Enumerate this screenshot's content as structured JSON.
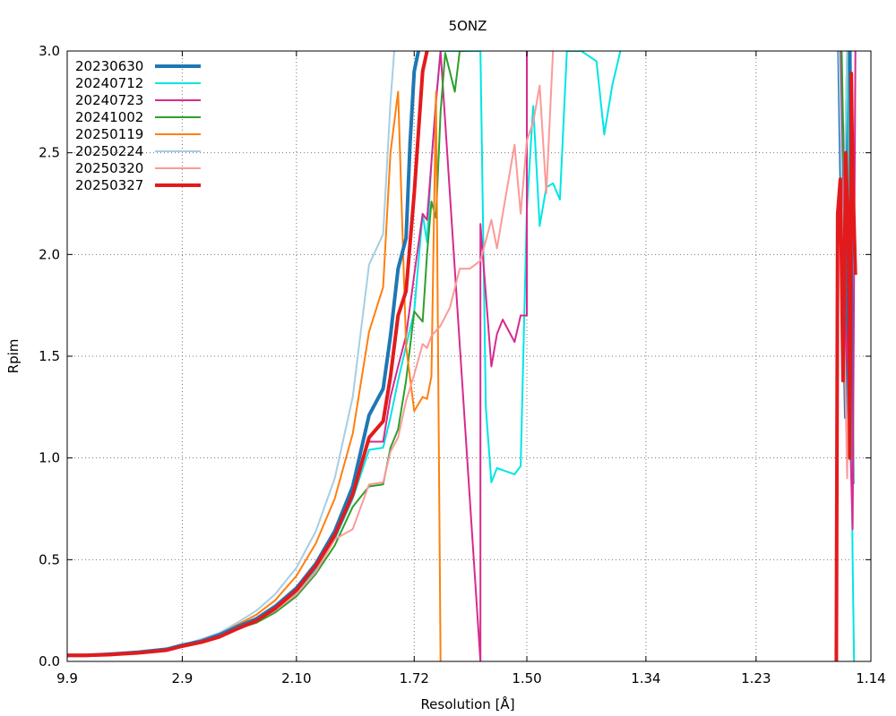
{
  "chart_data": {
    "type": "line",
    "title": "5ONZ",
    "xlabel": "Resolution [Å]",
    "ylabel": "Rpim",
    "x_scale": "reciprocal-square (1/d²)",
    "xlim": [
      9.9,
      1.14
    ],
    "ylim": [
      0,
      3.0
    ],
    "x_ticks": [
      "9.9",
      "2.9",
      "2.10",
      "1.72",
      "1.50",
      "1.34",
      "1.23",
      "1.14"
    ],
    "y_ticks": [
      "0.0",
      "0.5",
      "1.0",
      "1.5",
      "2.0",
      "2.5",
      "3.0"
    ],
    "grid": true,
    "legend_position": "top-left",
    "series": [
      {
        "name": "20230630",
        "color": "#1f77b4",
        "width": 4,
        "x": [
          9.9,
          6.0,
          4.5,
          3.6,
          3.1,
          2.9,
          2.7,
          2.55,
          2.42,
          2.3,
          2.2,
          2.1,
          2.02,
          1.95,
          1.89,
          1.84,
          1.8,
          1.78,
          1.76,
          1.74,
          1.73,
          1.72,
          1.71
        ],
        "y": [
          0.03,
          0.03,
          0.035,
          0.045,
          0.06,
          0.08,
          0.1,
          0.13,
          0.17,
          0.21,
          0.27,
          0.36,
          0.48,
          0.64,
          0.86,
          1.21,
          1.34,
          1.6,
          1.93,
          2.08,
          2.55,
          2.9,
          3.0
        ]
      },
      {
        "name": "20240712",
        "color": "#00e5e5",
        "width": 2,
        "x": [
          9.9,
          6.0,
          4.5,
          3.6,
          3.1,
          2.9,
          2.7,
          2.55,
          2.42,
          2.3,
          2.2,
          2.1,
          2.02,
          1.95,
          1.89,
          1.84,
          1.8,
          1.78,
          1.76,
          1.74,
          1.72,
          1.7,
          1.69,
          1.68,
          1.67,
          1.66,
          1.58,
          1.57,
          1.56,
          1.55,
          1.54,
          1.52,
          1.51,
          1.5,
          1.49,
          1.48,
          1.47,
          1.46,
          1.45,
          1.44,
          1.42,
          1.4,
          1.39,
          1.38,
          1.37
        ],
        "y": [
          0.03,
          0.03,
          0.035,
          0.045,
          0.06,
          0.08,
          0.1,
          0.13,
          0.17,
          0.2,
          0.26,
          0.34,
          0.45,
          0.6,
          0.8,
          1.04,
          1.05,
          1.2,
          1.38,
          1.55,
          1.72,
          2.2,
          2.06,
          2.45,
          2.76,
          3.0,
          3.0,
          1.25,
          0.88,
          0.95,
          0.94,
          0.92,
          0.96,
          2.22,
          2.73,
          2.14,
          2.33,
          2.35,
          2.27,
          3.0,
          3.0,
          2.95,
          2.59,
          2.83,
          3.0
        ]
      },
      {
        "name": "20240723",
        "color": "#d62a8e",
        "width": 2,
        "x": [
          9.9,
          6.0,
          4.5,
          3.6,
          3.1,
          2.9,
          2.7,
          2.55,
          2.42,
          2.3,
          2.2,
          2.1,
          2.02,
          1.95,
          1.89,
          1.84,
          1.8,
          1.78,
          1.76,
          1.74,
          1.72,
          1.7,
          1.69,
          1.67,
          1.66,
          1.66,
          1.58,
          1.58,
          1.56,
          1.55,
          1.54,
          1.52,
          1.51,
          1.5,
          1.5
        ],
        "y": [
          0.03,
          0.03,
          0.035,
          0.045,
          0.06,
          0.08,
          0.1,
          0.13,
          0.17,
          0.21,
          0.27,
          0.36,
          0.48,
          0.64,
          0.86,
          1.08,
          1.08,
          1.3,
          1.45,
          1.6,
          1.9,
          2.2,
          2.17,
          2.75,
          3.0,
          3.0,
          0.0,
          2.15,
          1.45,
          1.61,
          1.68,
          1.57,
          1.7,
          1.7,
          3.0
        ]
      },
      {
        "name": "20241002",
        "color": "#2ca02c",
        "width": 2,
        "x": [
          9.9,
          6.0,
          4.5,
          3.6,
          3.1,
          2.9,
          2.7,
          2.55,
          2.42,
          2.3,
          2.2,
          2.1,
          2.02,
          1.95,
          1.89,
          1.84,
          1.8,
          1.78,
          1.76,
          1.74,
          1.72,
          1.7,
          1.69,
          1.68,
          1.67,
          1.66,
          1.65,
          1.63,
          1.62,
          1.61
        ],
        "y": [
          0.03,
          0.03,
          0.035,
          0.045,
          0.06,
          0.08,
          0.1,
          0.13,
          0.16,
          0.19,
          0.24,
          0.32,
          0.43,
          0.57,
          0.76,
          0.86,
          0.87,
          1.05,
          1.14,
          1.38,
          1.72,
          1.67,
          2.0,
          2.26,
          2.18,
          2.7,
          2.99,
          2.8,
          3.0,
          3.0
        ]
      },
      {
        "name": "20250119",
        "color": "#ff7f0e",
        "width": 2,
        "x": [
          9.9,
          6.0,
          4.5,
          3.6,
          3.1,
          2.9,
          2.7,
          2.55,
          2.42,
          2.3,
          2.2,
          2.1,
          2.02,
          1.95,
          1.89,
          1.84,
          1.8,
          1.78,
          1.76,
          1.74,
          1.72,
          1.7,
          1.69,
          1.68,
          1.67,
          1.66
        ],
        "y": [
          0.03,
          0.03,
          0.035,
          0.045,
          0.06,
          0.08,
          0.1,
          0.14,
          0.18,
          0.23,
          0.3,
          0.42,
          0.58,
          0.8,
          1.12,
          1.62,
          1.84,
          2.5,
          2.8,
          1.55,
          1.23,
          1.3,
          1.29,
          1.4,
          2.8,
          0.0
        ]
      },
      {
        "name": "20250224",
        "color": "#a6cee3",
        "width": 2,
        "x": [
          9.9,
          6.0,
          4.5,
          3.6,
          3.1,
          2.9,
          2.7,
          2.55,
          2.42,
          2.3,
          2.2,
          2.1,
          2.02,
          1.95,
          1.89,
          1.84,
          1.8,
          1.78,
          1.77
        ],
        "y": [
          0.03,
          0.03,
          0.035,
          0.045,
          0.06,
          0.08,
          0.11,
          0.14,
          0.19,
          0.25,
          0.33,
          0.46,
          0.64,
          0.9,
          1.3,
          1.95,
          2.1,
          2.75,
          3.0
        ]
      },
      {
        "name": "20250320",
        "color": "#fb9a99",
        "width": 2,
        "x": [
          9.9,
          6.0,
          4.5,
          3.6,
          3.1,
          2.9,
          2.7,
          2.55,
          2.42,
          2.3,
          2.2,
          2.1,
          2.02,
          1.95,
          1.89,
          1.84,
          1.8,
          1.78,
          1.76,
          1.74,
          1.72,
          1.7,
          1.69,
          1.68,
          1.66,
          1.64,
          1.62,
          1.6,
          1.58,
          1.56,
          1.55,
          1.54,
          1.52,
          1.51,
          1.5,
          1.49,
          1.48,
          1.47,
          1.46
        ],
        "y": [
          0.03,
          0.03,
          0.035,
          0.045,
          0.06,
          0.08,
          0.1,
          0.13,
          0.16,
          0.2,
          0.25,
          0.33,
          0.44,
          0.6,
          0.65,
          0.87,
          0.88,
          1.03,
          1.1,
          1.28,
          1.41,
          1.56,
          1.54,
          1.6,
          1.65,
          1.74,
          1.93,
          1.93,
          1.97,
          2.17,
          2.03,
          2.2,
          2.54,
          2.2,
          2.56,
          2.65,
          2.83,
          2.3,
          3.0
        ]
      },
      {
        "name": "20250327",
        "color": "#e31a1c",
        "width": 4,
        "x": [
          9.9,
          6.0,
          4.5,
          3.6,
          3.1,
          2.9,
          2.7,
          2.55,
          2.42,
          2.3,
          2.2,
          2.1,
          2.02,
          1.95,
          1.89,
          1.84,
          1.8,
          1.78,
          1.76,
          1.74,
          1.72,
          1.71,
          1.7,
          1.69
        ],
        "y": [
          0.03,
          0.03,
          0.033,
          0.042,
          0.055,
          0.075,
          0.095,
          0.12,
          0.16,
          0.2,
          0.26,
          0.35,
          0.47,
          0.62,
          0.82,
          1.1,
          1.18,
          1.4,
          1.7,
          1.82,
          2.3,
          2.6,
          2.9,
          3.0
        ]
      }
    ],
    "high_res_cluster": {
      "note": "Additional series activity near 1.15–1.16 Å",
      "segments": [
        {
          "series": "20230630",
          "x": [
            1.163,
            1.161,
            1.158,
            1.156,
            1.155,
            1.153
          ],
          "y": [
            3.0,
            2.2,
            1.2,
            3.0,
            3.0,
            0.87
          ]
        },
        {
          "series": "20240712",
          "x": [
            1.157,
            1.155,
            1.153,
            1.152
          ],
          "y": [
            3.0,
            1.9,
            0.5,
            0.0
          ]
        },
        {
          "series": "20240723",
          "x": [
            1.162,
            1.159,
            1.156,
            1.153,
            1.152,
            1.151
          ],
          "y": [
            3.0,
            1.7,
            1.4,
            0.65,
            1.9,
            3.0
          ]
        },
        {
          "series": "20241002",
          "x": [
            1.161,
            1.159,
            1.157
          ],
          "y": [
            3.0,
            2.3,
            3.0
          ]
        },
        {
          "series": "20250224",
          "x": [
            1.163,
            1.16,
            1.157
          ],
          "y": [
            3.0,
            2.0,
            3.0
          ]
        },
        {
          "series": "20250320",
          "x": [
            1.159,
            1.157,
            1.155
          ],
          "y": [
            1.6,
            0.9,
            2.0
          ]
        },
        {
          "series": "20250327",
          "x": [
            1.165,
            1.164,
            1.162,
            1.16,
            1.158,
            1.156,
            1.155,
            1.154,
            1.153,
            1.151
          ],
          "y": [
            0.0,
            2.2,
            2.37,
            1.38,
            2.5,
            2.0,
            1.0,
            2.89,
            2.4,
            1.9
          ]
        }
      ]
    }
  }
}
